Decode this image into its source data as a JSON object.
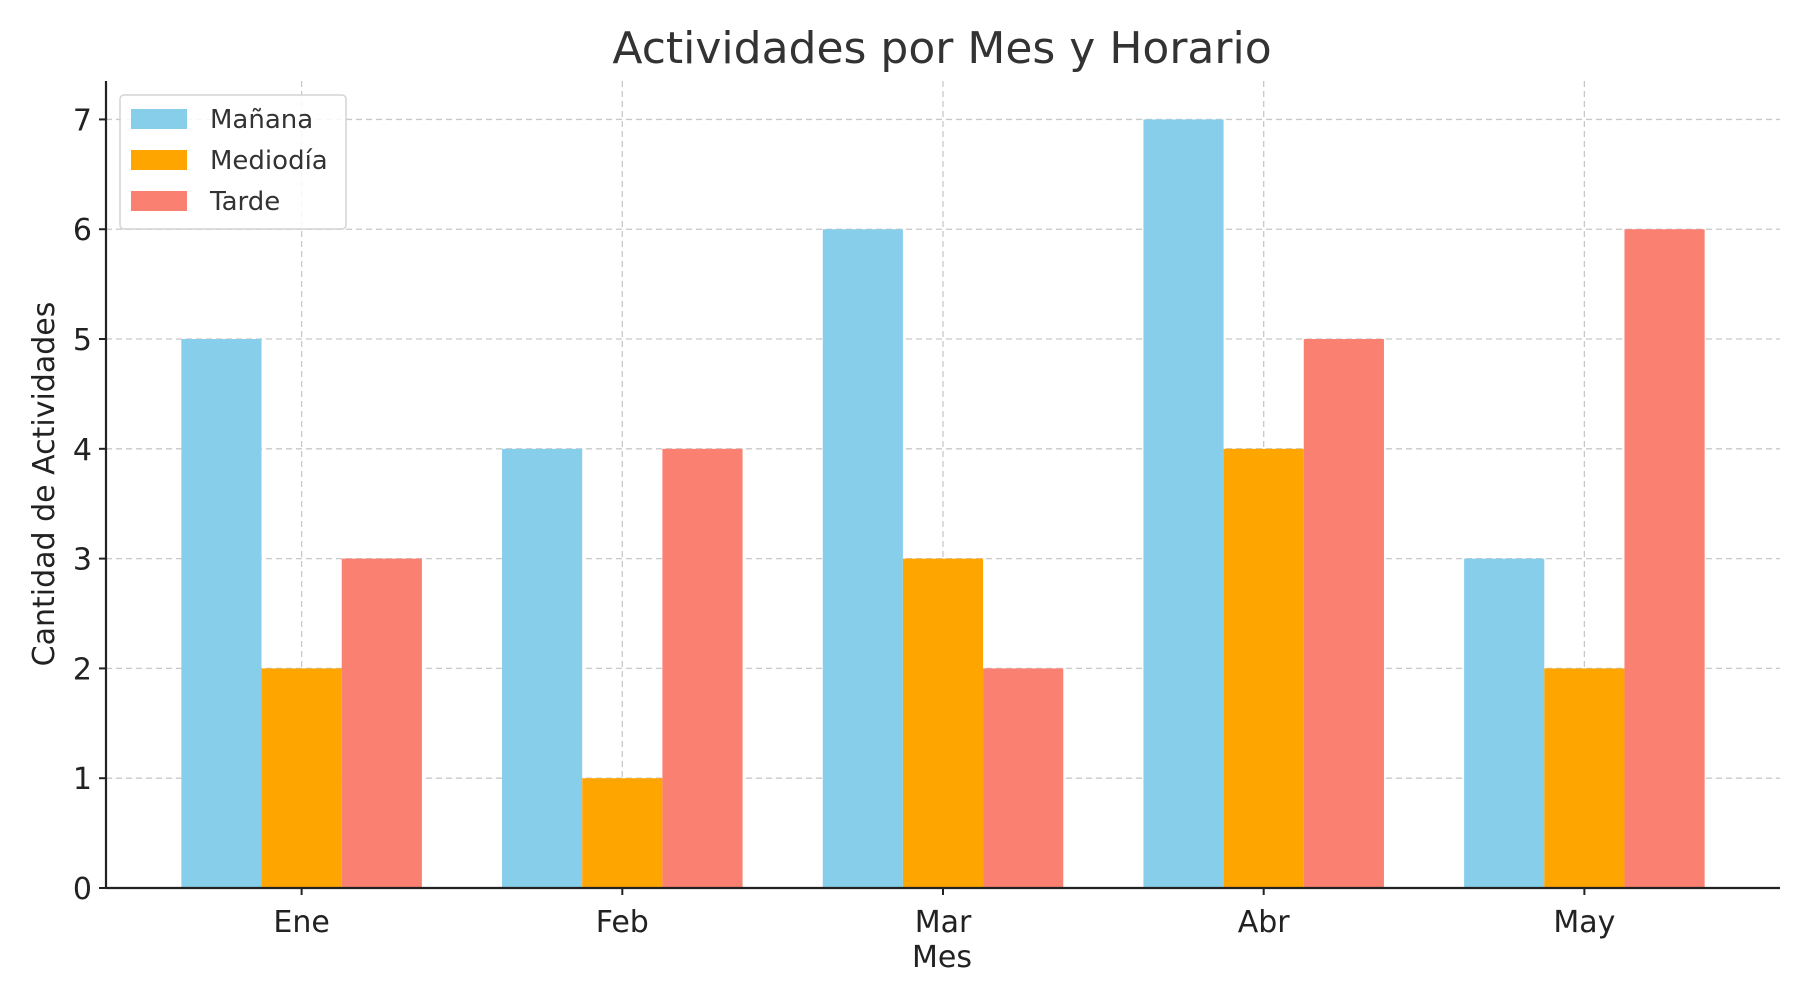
{
  "chart_data": {
    "type": "bar",
    "title": "Actividades por Mes y Horario",
    "xlabel": "Mes",
    "ylabel": "Cantidad de Actividades",
    "categories": [
      "Ene",
      "Feb",
      "Mar",
      "Abr",
      "May"
    ],
    "series": [
      {
        "name": "Mañana",
        "color": "#87CEEB",
        "values": [
          5,
          4,
          6,
          7,
          3
        ]
      },
      {
        "name": "Mediodía",
        "color": "#FFA500",
        "values": [
          2,
          1,
          3,
          4,
          2
        ]
      },
      {
        "name": "Tarde",
        "color": "#FA8072",
        "values": [
          3,
          4,
          2,
          5,
          6
        ]
      }
    ],
    "ylim": [
      0,
      7.35
    ],
    "yticks": [
      0,
      1,
      2,
      3,
      4,
      5,
      6,
      7
    ],
    "grid": true,
    "legend_position": "top-left"
  }
}
